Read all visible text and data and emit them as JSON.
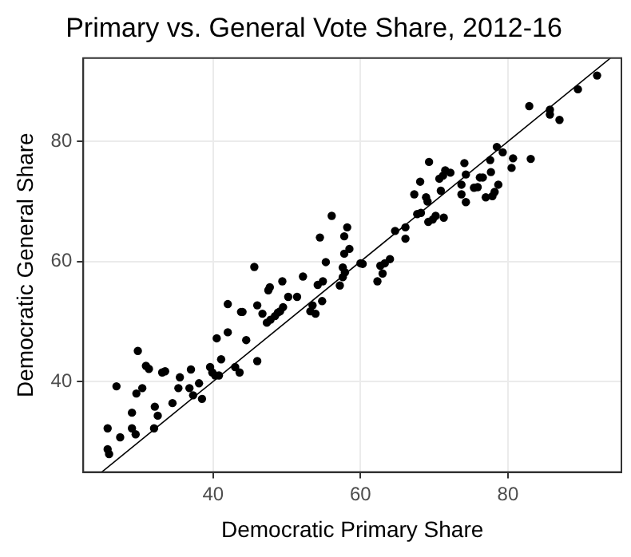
{
  "chart_data": {
    "type": "scatter",
    "title": "Primary vs. General Vote Share, 2012-16",
    "xlabel": "Democratic Primary Share",
    "ylabel": "Democratic General Share",
    "xlim": [
      22.4,
      95.4
    ],
    "ylim": [
      24.9,
      93.9
    ],
    "xticks": [
      40,
      60,
      80
    ],
    "yticks": [
      40,
      60,
      80
    ],
    "grid": true,
    "marker": "circle",
    "series": [
      {
        "color": "#000000",
        "x": [
          25.7,
          25.7,
          25.9,
          27.4,
          26.9,
          29.8,
          29.0,
          29.0,
          29.5,
          29.6,
          30.4,
          30.9,
          31.3,
          32.0,
          32.1,
          32.5,
          33.1,
          33.5,
          34.5,
          35.3,
          35.5,
          36.8,
          37.0,
          37.3,
          38.1,
          38.5,
          39.6,
          39.9,
          40.3,
          40.8,
          40.5,
          41.1,
          42.0,
          42.0,
          43.0,
          43.6,
          43.8,
          44.0,
          44.5,
          45.6,
          46.0,
          46.0,
          46.7,
          47.5,
          47.7,
          47.3,
          47.8,
          48.4,
          48.8,
          49.1,
          49.5,
          49.4,
          50.2,
          51.4,
          52.2,
          53.2,
          53.5,
          53.9,
          54.8,
          54.2,
          54.9,
          55.3,
          57.2,
          57.6,
          57.6,
          57.9,
          57.8,
          54.5,
          56.1,
          58.2,
          57.8,
          58.5,
          60.0,
          60.3,
          62.3,
          62.7,
          63.0,
          63.3,
          64.0,
          64.7,
          66.1,
          66.1,
          67.3,
          67.7,
          68.2,
          68.1,
          68.9,
          69.1,
          69.3,
          69.2,
          69.8,
          70.2,
          70.9,
          70.7,
          71.2,
          71.5,
          72.2,
          71.3,
          73.7,
          73.7,
          74.1,
          74.3,
          74.3,
          75.4,
          75.9,
          76.2,
          76.6,
          77.0,
          77.6,
          77.7,
          77.9,
          78.2,
          78.7,
          78.5,
          79.3,
          80.5,
          80.7,
          83.1,
          82.9,
          85.7,
          85.7,
          87.0,
          89.5,
          92.1
        ],
        "values": [
          32.2,
          28.7,
          27.9,
          30.7,
          39.2,
          45.1,
          34.8,
          32.2,
          31.2,
          38.0,
          38.9,
          42.6,
          42.1,
          32.2,
          35.8,
          34.3,
          41.5,
          41.7,
          36.4,
          38.9,
          40.7,
          38.9,
          42.0,
          37.7,
          39.7,
          37.1,
          42.4,
          41.5,
          41.0,
          41.0,
          47.2,
          43.7,
          52.9,
          48.2,
          42.4,
          41.5,
          51.6,
          51.6,
          46.9,
          59.1,
          52.7,
          43.4,
          51.3,
          55.2,
          55.7,
          49.8,
          50.3,
          50.9,
          51.5,
          51.7,
          52.4,
          56.7,
          54.1,
          54.1,
          57.5,
          51.7,
          52.7,
          51.3,
          53.4,
          56.1,
          56.7,
          59.9,
          56.0,
          59.0,
          57.4,
          58.2,
          61.3,
          64.0,
          67.6,
          65.7,
          64.2,
          62.1,
          59.7,
          59.6,
          56.7,
          59.3,
          58.0,
          59.7,
          60.4,
          65.1,
          65.7,
          63.8,
          71.2,
          67.9,
          68.1,
          73.3,
          70.7,
          70.0,
          76.6,
          66.6,
          67.0,
          67.6,
          71.8,
          73.8,
          74.3,
          75.2,
          74.8,
          67.3,
          72.8,
          71.2,
          76.4,
          74.5,
          69.9,
          72.3,
          72.4,
          74.0,
          74.0,
          70.7,
          76.9,
          74.9,
          70.9,
          71.6,
          72.8,
          79.1,
          78.2,
          75.6,
          77.2,
          77.1,
          85.9,
          85.3,
          84.5,
          83.6,
          88.7,
          91.0
        ]
      },
      {
        "type": "line",
        "color": "#000000",
        "marker": "none",
        "x": [
          24.9,
          93.9
        ],
        "values": [
          24.9,
          93.9
        ]
      }
    ]
  }
}
